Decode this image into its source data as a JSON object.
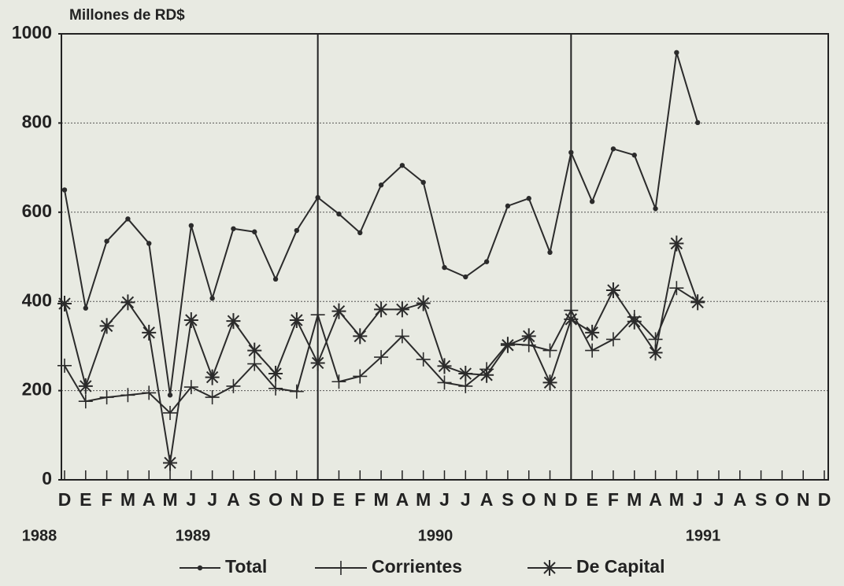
{
  "chart_data": {
    "type": "line",
    "y_axis_label": "Millones de RD$",
    "categories": [
      "D",
      "E",
      "F",
      "M",
      "A",
      "M",
      "J",
      "J",
      "A",
      "S",
      "O",
      "N",
      "D",
      "E",
      "F",
      "M",
      "A",
      "M",
      "J",
      "J",
      "A",
      "S",
      "O",
      "N",
      "D",
      "E",
      "F",
      "M",
      "A",
      "M",
      "J",
      "J",
      "A",
      "S",
      "O",
      "N",
      "D"
    ],
    "year_labels": [
      "1988",
      "1989",
      "1990",
      "1991"
    ],
    "series": [
      {
        "name": "Total",
        "color": "#2b2b2b",
        "marker": "dot",
        "values": [
          650,
          385,
          535,
          585,
          530,
          190,
          570,
          407,
          563,
          556,
          450,
          559,
          633,
          596,
          554,
          661,
          705,
          667,
          476,
          455,
          489,
          614,
          631,
          510,
          734,
          624,
          742,
          728,
          608,
          958,
          801,
          null,
          null,
          null,
          null,
          null,
          null
        ]
      },
      {
        "name": "Corrientes",
        "color": "#2b2b2b",
        "marker": "plus",
        "values": [
          256,
          176,
          185,
          190,
          195,
          150,
          208,
          185,
          210,
          260,
          205,
          198,
          370,
          220,
          232,
          275,
          322,
          270,
          218,
          210,
          248,
          305,
          302,
          290,
          380,
          290,
          315,
          365,
          315,
          430,
          400,
          null,
          null,
          null,
          null,
          null,
          null
        ]
      },
      {
        "name": "De Capital",
        "color": "#2b2b2b",
        "marker": "star",
        "values": [
          395,
          210,
          345,
          398,
          330,
          38,
          358,
          230,
          356,
          290,
          238,
          358,
          262,
          378,
          322,
          382,
          382,
          396,
          255,
          238,
          235,
          302,
          322,
          218,
          360,
          330,
          425,
          355,
          285,
          530,
          398,
          null,
          null,
          null,
          null,
          null,
          null
        ]
      }
    ],
    "ylim": [
      0,
      1000
    ],
    "yticks": [
      0,
      200,
      400,
      600,
      800,
      1000
    ],
    "grid": true,
    "legend": "bottom"
  }
}
